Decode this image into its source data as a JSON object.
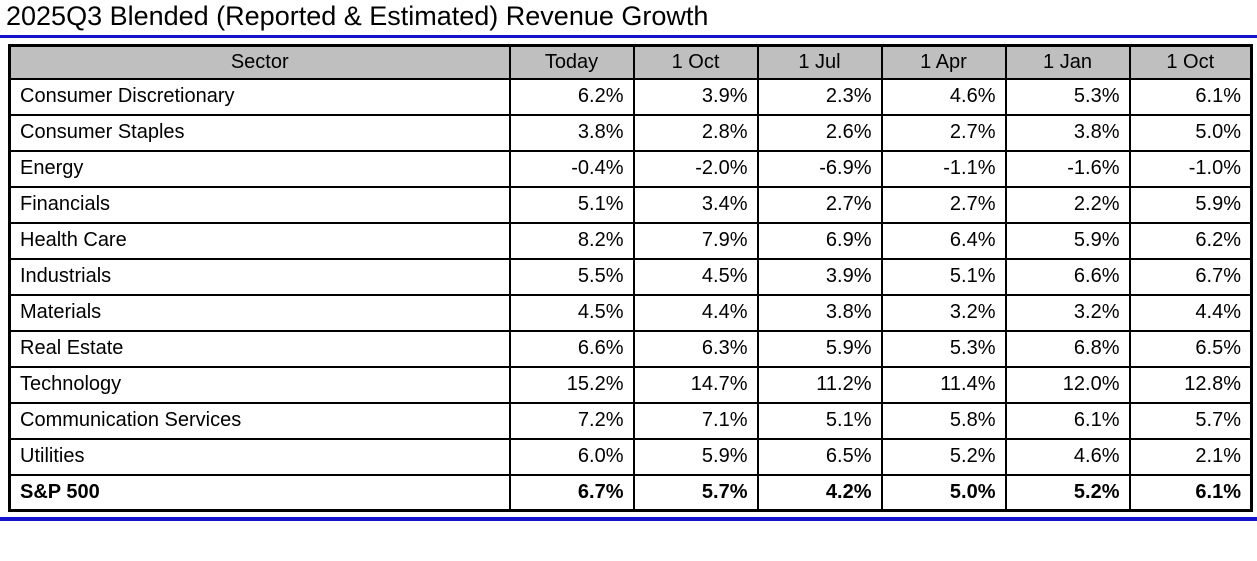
{
  "title": "2025Q3 Blended (Reported & Estimated) Revenue Growth",
  "colors": {
    "accent_blue": "#1414cc",
    "header_bg": "#bfbfbf",
    "border": "#000000"
  },
  "chart_data": {
    "type": "table",
    "title": "2025Q3 Blended (Reported & Estimated) Revenue Growth",
    "columns": [
      "Sector",
      "Today",
      "1 Oct",
      "1 Jul",
      "1 Apr",
      "1 Jan",
      "1 Oct"
    ],
    "rows": [
      {
        "sector": "Consumer Discretionary",
        "values": [
          "6.2%",
          "3.9%",
          "2.3%",
          "4.6%",
          "5.3%",
          "6.1%"
        ],
        "bold": false
      },
      {
        "sector": "Consumer Staples",
        "values": [
          "3.8%",
          "2.8%",
          "2.6%",
          "2.7%",
          "3.8%",
          "5.0%"
        ],
        "bold": false
      },
      {
        "sector": "Energy",
        "values": [
          "-0.4%",
          "-2.0%",
          "-6.9%",
          "-1.1%",
          "-1.6%",
          "-1.0%"
        ],
        "bold": false
      },
      {
        "sector": "Financials",
        "values": [
          "5.1%",
          "3.4%",
          "2.7%",
          "2.7%",
          "2.2%",
          "5.9%"
        ],
        "bold": false
      },
      {
        "sector": "Health Care",
        "values": [
          "8.2%",
          "7.9%",
          "6.9%",
          "6.4%",
          "5.9%",
          "6.2%"
        ],
        "bold": false
      },
      {
        "sector": "Industrials",
        "values": [
          "5.5%",
          "4.5%",
          "3.9%",
          "5.1%",
          "6.6%",
          "6.7%"
        ],
        "bold": false
      },
      {
        "sector": "Materials",
        "values": [
          "4.5%",
          "4.4%",
          "3.8%",
          "3.2%",
          "3.2%",
          "4.4%"
        ],
        "bold": false
      },
      {
        "sector": "Real Estate",
        "values": [
          "6.6%",
          "6.3%",
          "5.9%",
          "5.3%",
          "6.8%",
          "6.5%"
        ],
        "bold": false
      },
      {
        "sector": "Technology",
        "values": [
          "15.2%",
          "14.7%",
          "11.2%",
          "11.4%",
          "12.0%",
          "12.8%"
        ],
        "bold": false
      },
      {
        "sector": "Communication Services",
        "values": [
          "7.2%",
          "7.1%",
          "5.1%",
          "5.8%",
          "6.1%",
          "5.7%"
        ],
        "bold": false
      },
      {
        "sector": "Utilities",
        "values": [
          "6.0%",
          "5.9%",
          "6.5%",
          "5.2%",
          "4.6%",
          "2.1%"
        ],
        "bold": false
      },
      {
        "sector": "S&P 500",
        "values": [
          "6.7%",
          "5.7%",
          "4.2%",
          "5.0%",
          "5.2%",
          "6.1%"
        ],
        "bold": true
      }
    ]
  }
}
